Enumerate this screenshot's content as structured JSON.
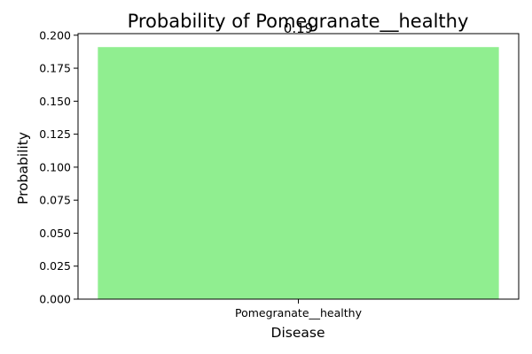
{
  "chart_data": {
    "type": "bar",
    "title": "Probability of Pomegranate__healthy",
    "xlabel": "Disease",
    "ylabel": "Probability",
    "categories": [
      "Pomegranate__healthy"
    ],
    "values": [
      0.191
    ],
    "value_labels": [
      "0.19"
    ],
    "ylim": [
      0,
      0.2012
    ],
    "yticks": [
      0,
      0.025,
      0.05,
      0.075,
      0.1,
      0.125,
      0.15,
      0.175,
      0.2
    ],
    "ytick_labels": [
      "0.000",
      "0.025",
      "0.050",
      "0.075",
      "0.100",
      "0.125",
      "0.150",
      "0.175",
      "0.200"
    ],
    "grid": false,
    "legend": false,
    "colors": {
      "bar": "#90ee90",
      "axis": "#000000",
      "background": "#ffffff"
    }
  }
}
